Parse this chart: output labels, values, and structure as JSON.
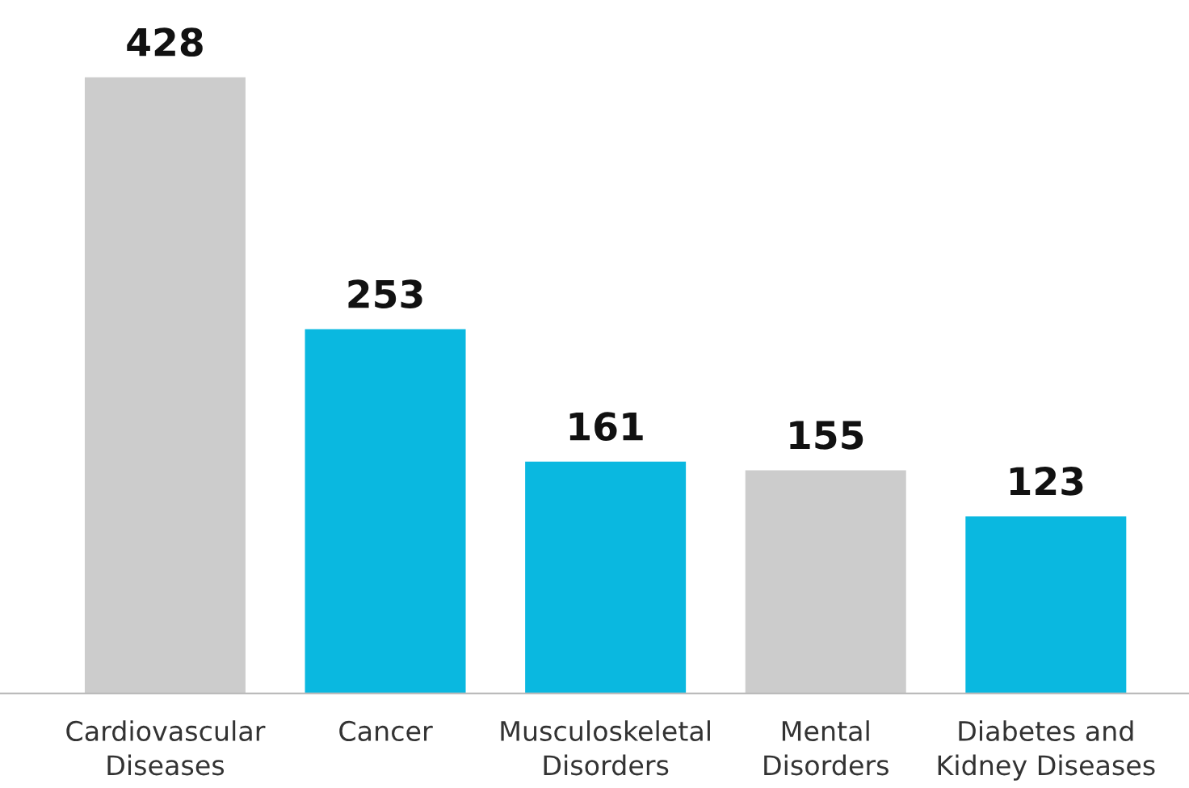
{
  "chart_data": {
    "type": "bar",
    "categories": [
      "Cardiovascular\nDiseases",
      "Cancer",
      "Musculoskeletal\nDisorders",
      "Mental\nDisorders",
      "Diabetes and\nKidney Diseases"
    ],
    "values": [
      428,
      253,
      161,
      155,
      123
    ],
    "colors": [
      "#cccccc",
      "#0ab8e0",
      "#0ab8e0",
      "#cccccc",
      "#0ab8e0"
    ],
    "data_labels": true,
    "grid": false,
    "legend": false
  }
}
